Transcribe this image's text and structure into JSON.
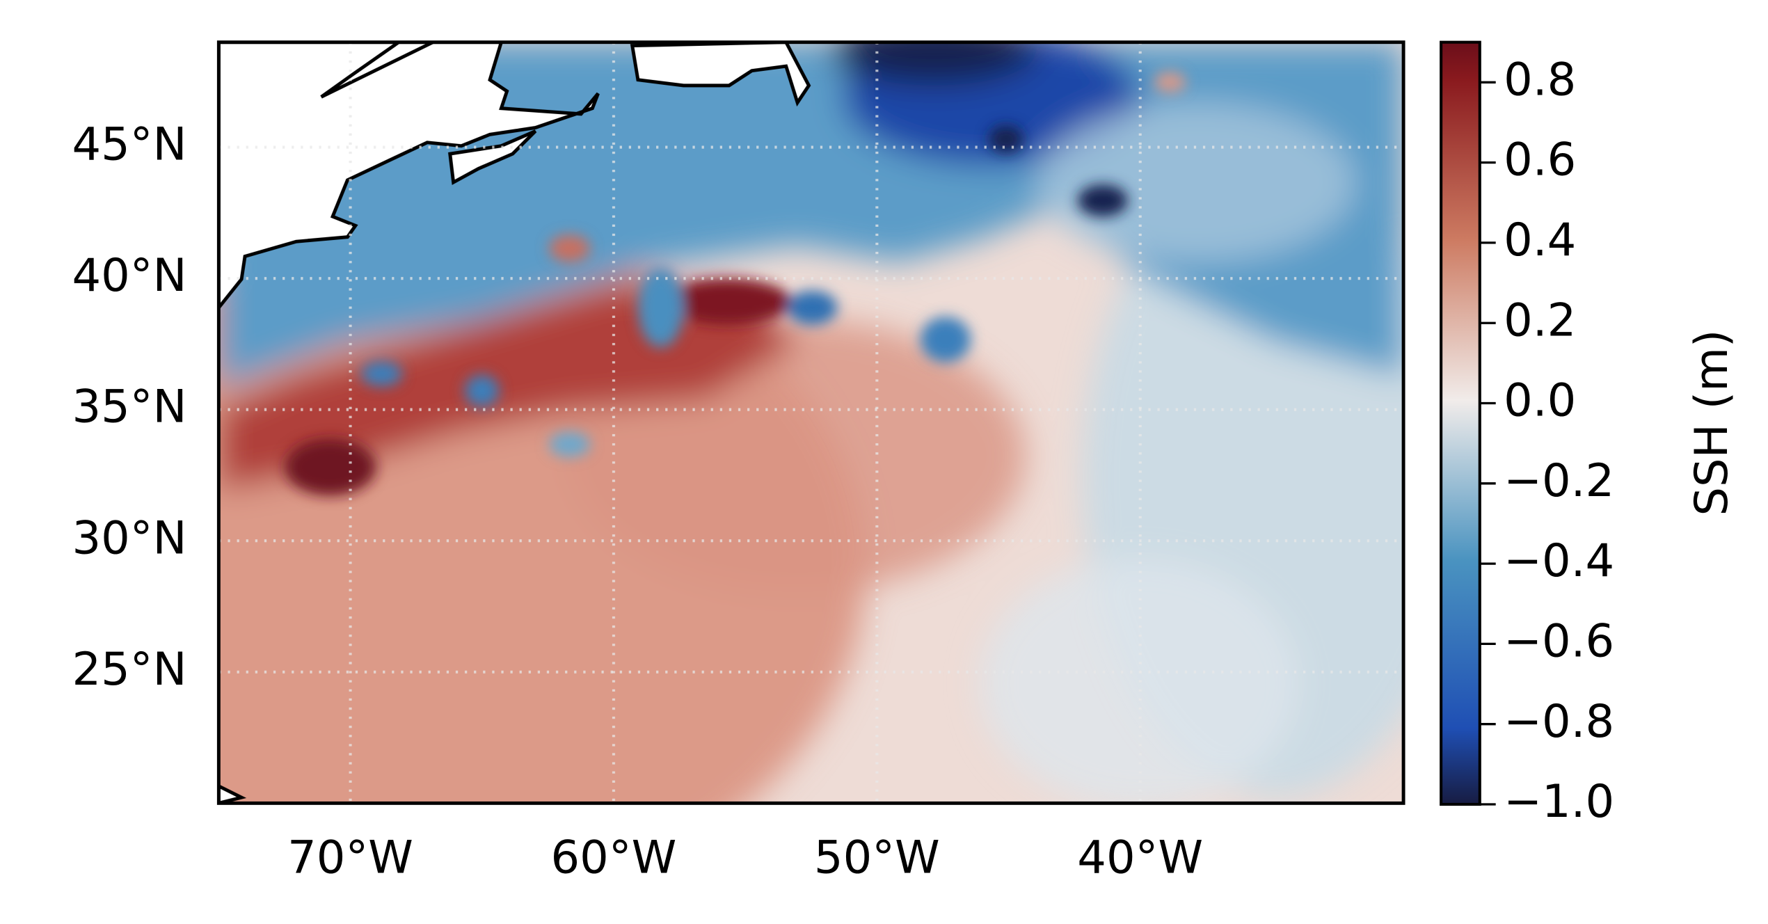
{
  "chart_data": {
    "type": "map",
    "xlim": [
      -75,
      -30
    ],
    "ylim": [
      20,
      49
    ],
    "xticks": [
      {
        "value": -70,
        "label": "70°W"
      },
      {
        "value": -60,
        "label": "60°W"
      },
      {
        "value": -50,
        "label": "50°W"
      },
      {
        "value": -40,
        "label": "40°W"
      }
    ],
    "yticks": [
      {
        "value": 25,
        "label": "25°N"
      },
      {
        "value": 30,
        "label": "30°N"
      },
      {
        "value": 35,
        "label": "35°N"
      },
      {
        "value": 40,
        "label": "40°N"
      },
      {
        "value": 45,
        "label": "45°N"
      }
    ],
    "grid": true,
    "colorbar": {
      "label": "SSH (m)",
      "lim": [
        -1.0,
        0.9
      ],
      "ticks": [
        {
          "value": -1.0,
          "label": "−1.0"
        },
        {
          "value": -0.8,
          "label": "−0.8"
        },
        {
          "value": -0.6,
          "label": "−0.6"
        },
        {
          "value": -0.4,
          "label": "−0.4"
        },
        {
          "value": -0.2,
          "label": "−0.2"
        },
        {
          "value": 0,
          "label": "0.0"
        },
        0.2,
        0.4,
        0.6,
        0.8
      ]
    }
  }
}
